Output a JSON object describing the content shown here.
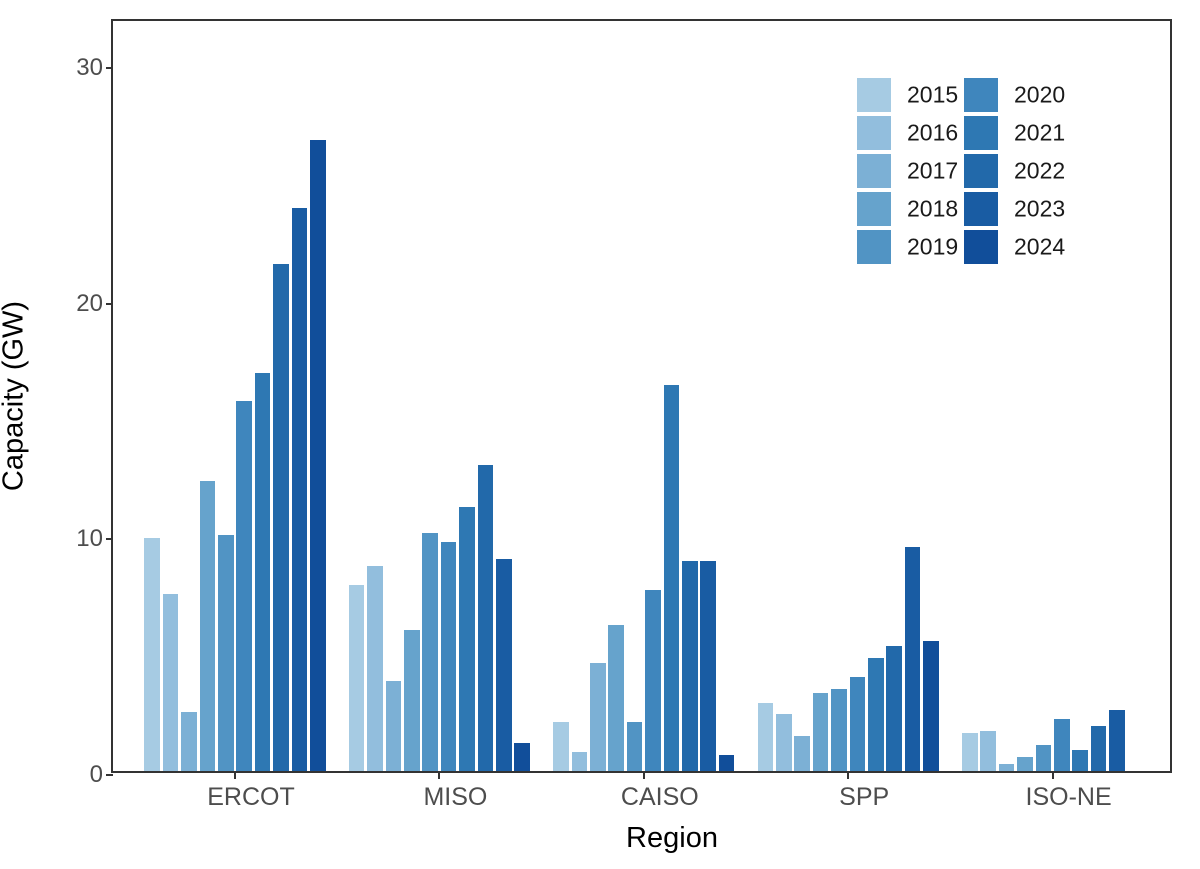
{
  "chart_data": {
    "type": "bar",
    "title": "",
    "xlabel": "Region",
    "ylabel": "Capacity (GW)",
    "categories": [
      "ERCOT",
      "MISO",
      "CAISO",
      "SPP",
      "ISO-NE"
    ],
    "series": [
      {
        "name": "2015",
        "color": "#a6cbe3",
        "values": [
          9.9,
          7.9,
          2.1,
          2.9,
          1.6
        ]
      },
      {
        "name": "2016",
        "color": "#92bedd",
        "values": [
          7.5,
          8.7,
          0.8,
          2.4,
          1.7
        ]
      },
      {
        "name": "2017",
        "color": "#7cb0d5",
        "values": [
          2.5,
          3.8,
          4.6,
          1.5,
          0.3
        ]
      },
      {
        "name": "2018",
        "color": "#66a3cc",
        "values": [
          12.3,
          6.0,
          6.2,
          3.3,
          0.6
        ]
      },
      {
        "name": "2019",
        "color": "#5194c4",
        "values": [
          10.0,
          10.1,
          2.1,
          3.5,
          1.1
        ]
      },
      {
        "name": "2020",
        "color": "#3f86bd",
        "values": [
          15.7,
          9.7,
          7.7,
          4.0,
          2.2
        ]
      },
      {
        "name": "2021",
        "color": "#2e78b3",
        "values": [
          16.9,
          11.2,
          16.4,
          4.8,
          0.9
        ]
      },
      {
        "name": "2022",
        "color": "#2269aa",
        "values": [
          21.5,
          13.0,
          8.9,
          5.3,
          1.9
        ]
      },
      {
        "name": "2023",
        "color": "#195ca3",
        "values": [
          23.9,
          9.0,
          8.9,
          9.5,
          2.6
        ]
      },
      {
        "name": "2024",
        "color": "#114e9a",
        "values": [
          26.8,
          1.2,
          0.7,
          5.5,
          0
        ]
      }
    ],
    "ylim": [
      0,
      32
    ],
    "yticks": [
      0,
      10,
      20,
      30
    ],
    "grid": false,
    "legend_position": "top-right-inside"
  }
}
